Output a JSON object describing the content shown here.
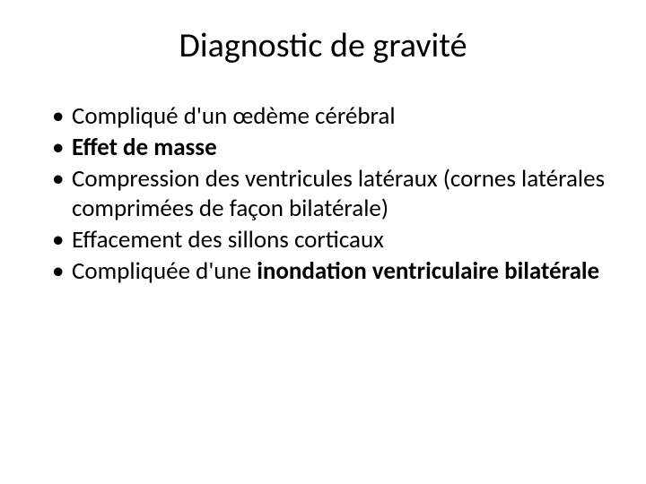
{
  "slide": {
    "title": "Diagnostic de gravité",
    "title_fontsize": 38,
    "title_color": "#000000",
    "bullet_fontsize": 27,
    "bullet_line_height": 1.22,
    "bullet_color": "#000000",
    "background_color": "#ffffff",
    "bullets": [
      {
        "pre": "Compliqué d",
        "apos": "'",
        "post": "un œdème cérébral"
      },
      {
        "bold_full": "Effet de masse"
      },
      {
        "plain": "Compression des ventricules latéraux (cornes latérales comprimées de façon bilatérale)"
      },
      {
        "plain": "Effacement des sillons corticaux"
      },
      {
        "pre": "Compliquée d",
        "apos": "'",
        "post_pre": "une ",
        "bold_tail": "inondation ventriculaire bilatérale"
      }
    ]
  }
}
